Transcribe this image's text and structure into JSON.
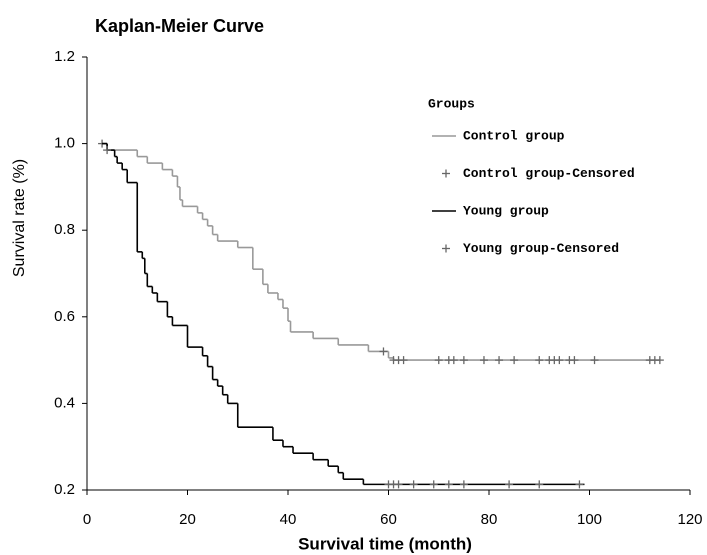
{
  "chart_data": {
    "type": "km-step",
    "title": "Kaplan-Meier Curve",
    "x_label": "Survival time (month)",
    "y_label": "Survival rate (%)",
    "legend_title": "Groups",
    "xlim": [
      0,
      120
    ],
    "xticks": [
      0,
      20,
      40,
      60,
      80,
      100,
      120
    ],
    "ylim": [
      0.2,
      1.2
    ],
    "yticks": [
      0.2,
      0.4,
      0.6,
      0.8,
      {
        "value": 1,
        "label": "1.0"
      },
      1.2
    ],
    "series": [
      {
        "name": "Control group",
        "style": "step",
        "color": "#999999",
        "x": [
          3,
          4,
          10,
          12,
          15,
          17,
          18,
          18.5,
          19,
          22,
          23,
          24,
          25,
          26,
          30,
          33,
          35,
          36,
          38,
          39,
          40,
          40.5,
          45,
          50,
          56,
          60,
          61,
          114
        ],
        "values": [
          1,
          0.985,
          0.97,
          0.955,
          0.94,
          0.925,
          0.9,
          0.87,
          0.855,
          0.84,
          0.825,
          0.81,
          0.79,
          0.775,
          0.76,
          0.71,
          0.675,
          0.655,
          0.64,
          0.62,
          0.59,
          0.565,
          0.55,
          0.535,
          0.52,
          0.505,
          0.5,
          0.5
        ]
      },
      {
        "name": "Control group-Censored",
        "style": "censored",
        "color": "#666666",
        "x": [
          3,
          59,
          61,
          62,
          63,
          70,
          72,
          73,
          75,
          79,
          82,
          85,
          90,
          92,
          93,
          94,
          96,
          97,
          101,
          112,
          113,
          114
        ],
        "values": [
          1,
          0.52,
          0.5,
          0.5,
          0.5,
          0.5,
          0.5,
          0.5,
          0.5,
          0.5,
          0.5,
          0.5,
          0.5,
          0.5,
          0.5,
          0.5,
          0.5,
          0.5,
          0.5,
          0.5,
          0.5,
          0.5
        ]
      },
      {
        "name": "Young group",
        "style": "step",
        "color": "#000000",
        "x": [
          3,
          4,
          5.5,
          6,
          7,
          8,
          10,
          11,
          11.5,
          12,
          13,
          14,
          16,
          17,
          20,
          23,
          24,
          25,
          26,
          27,
          28,
          30,
          37,
          39,
          41,
          45,
          48,
          50,
          51,
          55,
          99
        ],
        "values": [
          1,
          0.985,
          0.97,
          0.955,
          0.94,
          0.91,
          0.75,
          0.735,
          0.7,
          0.67,
          0.655,
          0.635,
          0.6,
          0.58,
          0.53,
          0.51,
          0.485,
          0.455,
          0.44,
          0.42,
          0.4,
          0.345,
          0.315,
          0.3,
          0.285,
          0.27,
          0.255,
          0.24,
          0.225,
          0.213,
          0.213
        ]
      },
      {
        "name": "Young group-Censored",
        "style": "censored",
        "color": "#666666",
        "x": [
          4,
          60,
          61,
          62,
          65,
          69,
          72,
          75,
          84,
          90,
          98
        ],
        "values": [
          0.985,
          0.213,
          0.213,
          0.213,
          0.213,
          0.213,
          0.213,
          0.213,
          0.213,
          0.213,
          0.213
        ]
      }
    ]
  }
}
